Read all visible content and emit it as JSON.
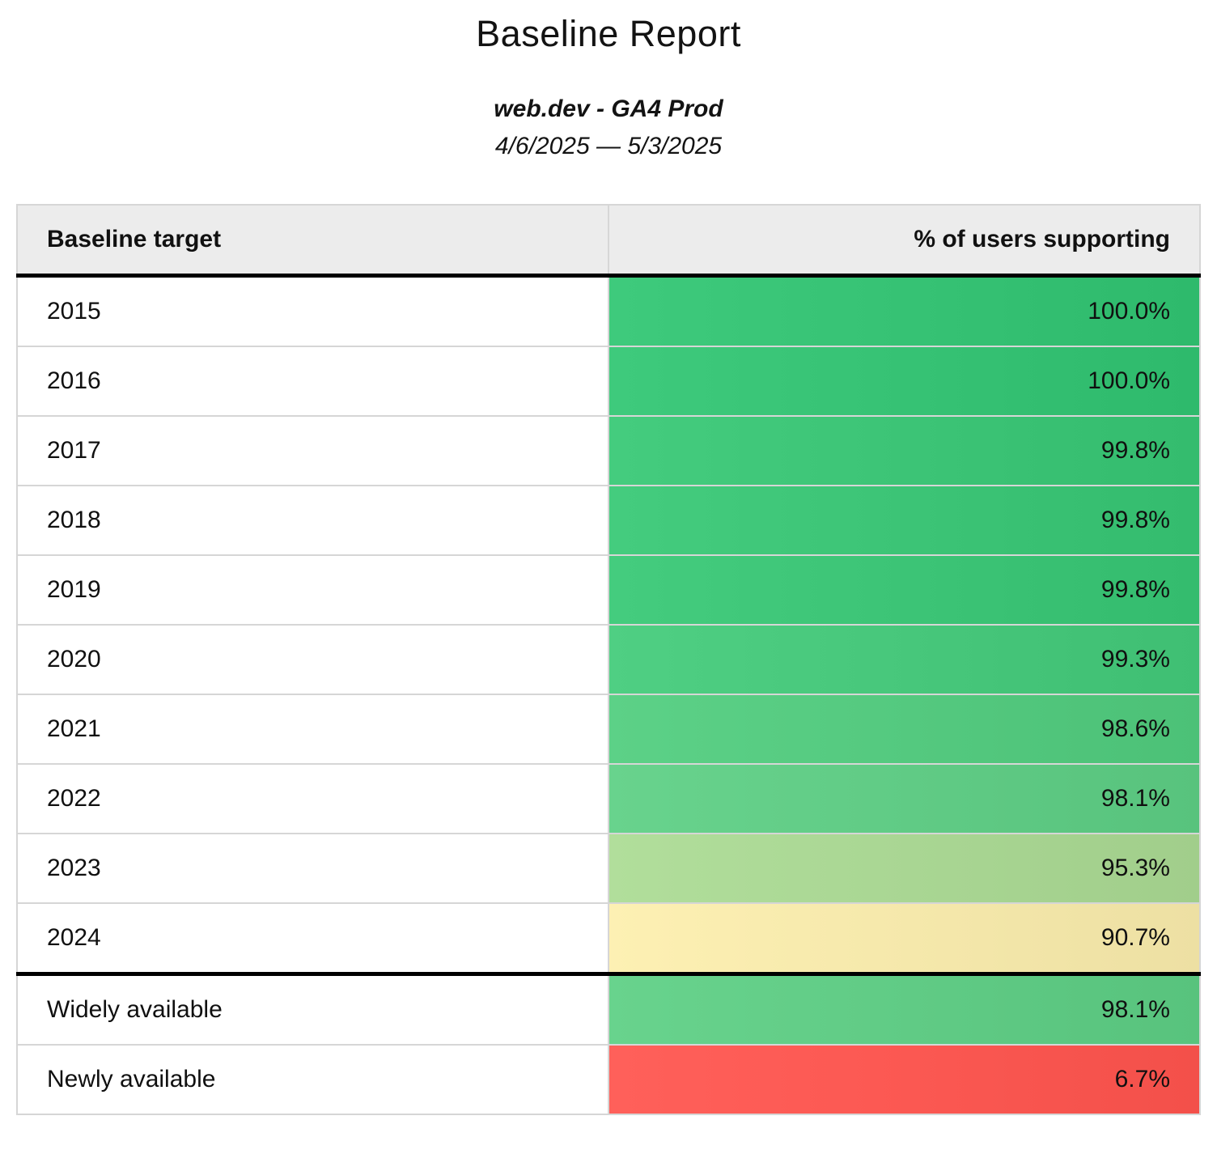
{
  "header": {
    "title": "Baseline Report",
    "subtitle": "web.dev - GA4 Prod",
    "date_range": "4/6/2025 — 5/3/2025"
  },
  "table": {
    "columns": {
      "target": "Baseline target",
      "percent": "% of users supporting"
    },
    "rows": [
      {
        "target": "2015",
        "percent": "100.0%",
        "color": "#37c375",
        "section_break_before": false
      },
      {
        "target": "2016",
        "percent": "100.0%",
        "color": "#37c375",
        "section_break_before": false
      },
      {
        "target": "2017",
        "percent": "99.8%",
        "color": "#3dc577",
        "section_break_before": false
      },
      {
        "target": "2018",
        "percent": "99.8%",
        "color": "#3dc577",
        "section_break_before": false
      },
      {
        "target": "2019",
        "percent": "99.8%",
        "color": "#3dc577",
        "section_break_before": false
      },
      {
        "target": "2020",
        "percent": "99.3%",
        "color": "#48c87c",
        "section_break_before": false
      },
      {
        "target": "2021",
        "percent": "98.6%",
        "color": "#55ca80",
        "section_break_before": false
      },
      {
        "target": "2022",
        "percent": "98.1%",
        "color": "#61cc86",
        "section_break_before": false
      },
      {
        "target": "2023",
        "percent": "95.3%",
        "color": "#aad794",
        "section_break_before": false
      },
      {
        "target": "2024",
        "percent": "90.7%",
        "color": "#f6e9ac",
        "section_break_before": false
      },
      {
        "target": "Widely available",
        "percent": "98.1%",
        "color": "#61cc86",
        "section_break_before": true
      },
      {
        "target": "Newly available",
        "percent": "6.7%",
        "color": "#fc5953",
        "section_break_before": false
      }
    ],
    "style": {
      "header_background": "#ececec",
      "grid_border_color": "#d6d6d6",
      "section_divider_color": "#000000"
    }
  },
  "chart_data": {
    "type": "table",
    "title": "Baseline Report",
    "subtitle": "web.dev - GA4 Prod",
    "date_range": "4/6/2025 — 5/3/2025",
    "columns": [
      "Baseline target",
      "% of users supporting"
    ],
    "categories": [
      "2015",
      "2016",
      "2017",
      "2018",
      "2019",
      "2020",
      "2021",
      "2022",
      "2023",
      "2024",
      "Widely available",
      "Newly available"
    ],
    "values": [
      100.0,
      100.0,
      99.8,
      99.8,
      99.8,
      99.3,
      98.6,
      98.1,
      95.3,
      90.7,
      98.1,
      6.7
    ],
    "value_unit": "%",
    "color_scale": "green-yellow-red by percent supported"
  }
}
